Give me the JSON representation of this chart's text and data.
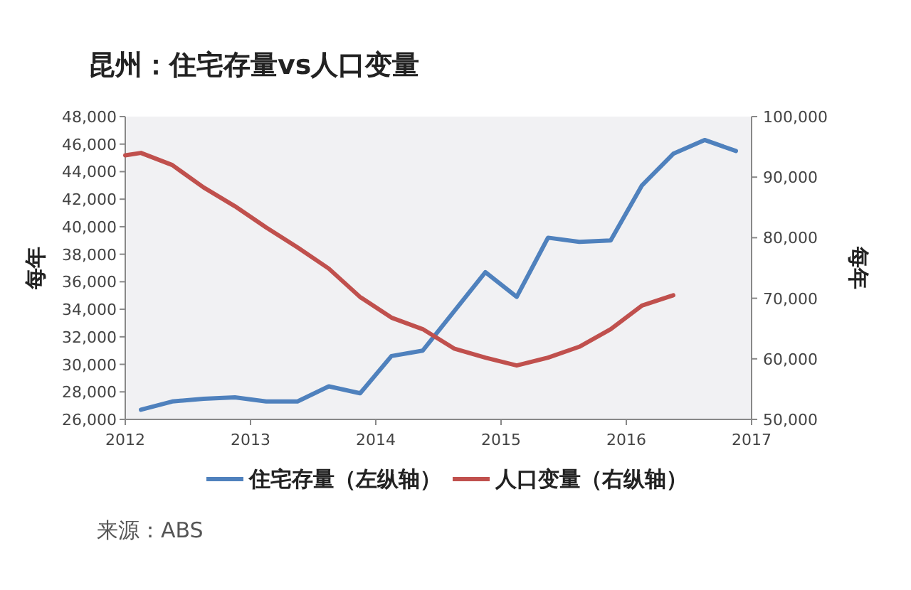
{
  "chart_data": {
    "type": "line",
    "title": "昆州：住宅存量vs人口变量",
    "ylabel": "每年",
    "y2label": "每年",
    "xlim": [
      2012,
      2017
    ],
    "xticks": [
      2012,
      2013,
      2014,
      2015,
      2016,
      2017
    ],
    "ylim": [
      26000,
      48000
    ],
    "yticks": [
      {
        "value": 26000,
        "label": "26,000"
      },
      {
        "value": 28000,
        "label": "28,000"
      },
      {
        "value": 30000,
        "label": "30,000"
      },
      {
        "value": 32000,
        "label": "32,000"
      },
      {
        "value": 34000,
        "label": "34,000"
      },
      {
        "value": 36000,
        "label": "36,000"
      },
      {
        "value": 38000,
        "label": "38,000"
      },
      {
        "value": 40000,
        "label": "40,000"
      },
      {
        "value": 42000,
        "label": "42,000"
      },
      {
        "value": 44000,
        "label": "44,000"
      },
      {
        "value": 46000,
        "label": "46,000"
      },
      {
        "value": 48000,
        "label": "48,000"
      }
    ],
    "y2lim": [
      50000,
      100000
    ],
    "y2ticks": [
      {
        "value": 50000,
        "label": "50,000"
      },
      {
        "value": 60000,
        "label": "60,000"
      },
      {
        "value": 70000,
        "label": "70,000"
      },
      {
        "value": 80000,
        "label": "80,000"
      },
      {
        "value": 90000,
        "label": "90,000"
      },
      {
        "value": 100000,
        "label": "100,000"
      }
    ],
    "legend": "bottom",
    "series": [
      {
        "name": "住宅存量（左纵轴）",
        "color": "#4f81bd",
        "x": [
          2012.125,
          2012.375,
          2012.625,
          2012.875,
          2013.125,
          2013.375,
          2013.625,
          2013.875,
          2014.125,
          2014.375,
          2014.875,
          2015.125,
          2015.375,
          2015.625,
          2015.875,
          2016.125,
          2016.375,
          2016.625,
          2016.875
        ],
        "values": [
          26700,
          27300,
          27500,
          27600,
          27300,
          27300,
          28400,
          27900,
          30600,
          31000,
          36700,
          34900,
          39200,
          38900,
          39000,
          43000,
          45300,
          46300,
          45500
        ]
      },
      {
        "name": "人口变量（右纵轴）",
        "color": "#c0504d",
        "axis": "y2",
        "x": [
          2012,
          2012.125,
          2012.375,
          2012.625,
          2012.875,
          2013.125,
          2013.375,
          2013.625,
          2013.875,
          2014.125,
          2014.375,
          2014.625,
          2014.875,
          2015.125,
          2015.375,
          2015.625,
          2015.875,
          2016.125,
          2016.375
        ],
        "values": [
          93600,
          94000,
          92000,
          88300,
          85200,
          81700,
          78400,
          74900,
          70200,
          66800,
          64900,
          61700,
          60200,
          58900,
          60200,
          62000,
          64900,
          68800,
          70500
        ]
      }
    ],
    "annotations": [
      "来源：ABS"
    ]
  }
}
